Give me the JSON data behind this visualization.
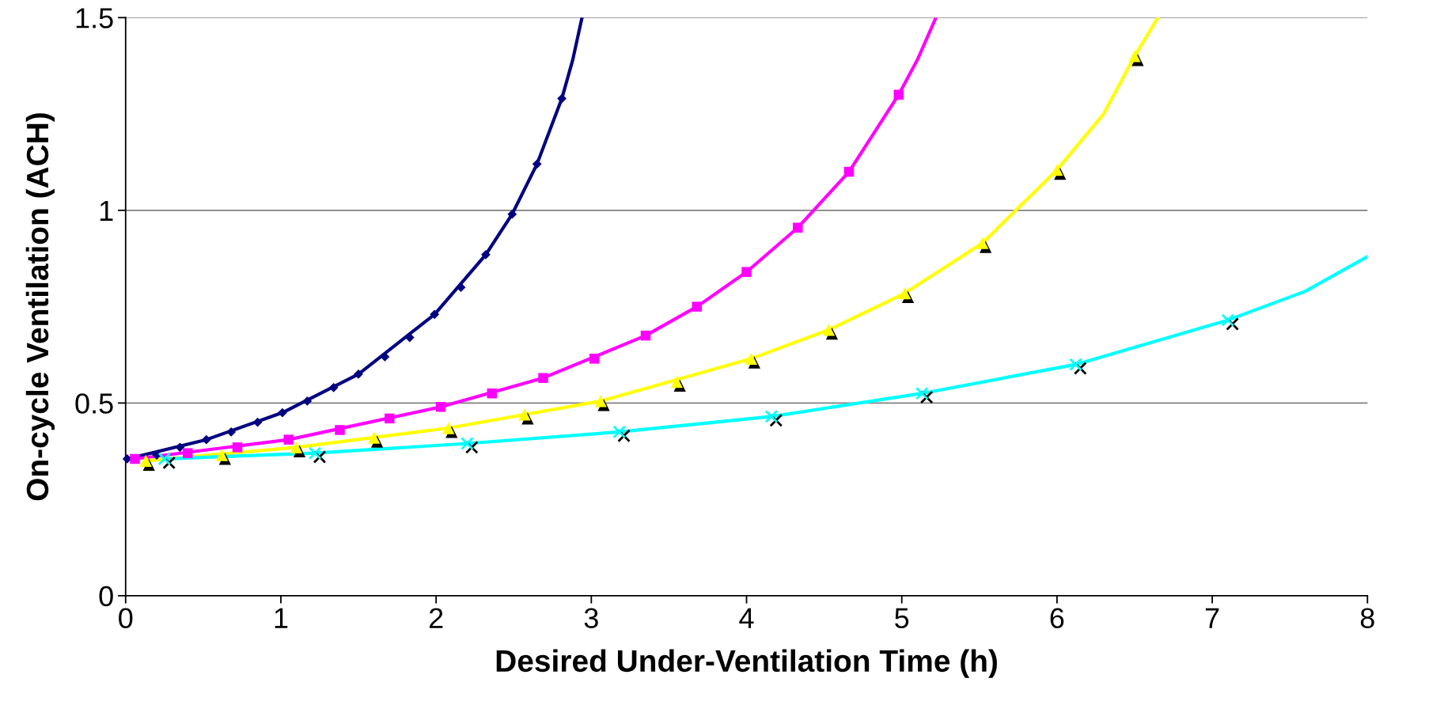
{
  "chart_data": {
    "type": "line",
    "xlabel": "Desired Under-Ventilation Time (h)",
    "ylabel": "On-cycle Ventilation (ACH)",
    "xlim": [
      0,
      8
    ],
    "ylim": [
      0,
      1.5
    ],
    "xticks": [
      0,
      1,
      2,
      3,
      4,
      5,
      6,
      7,
      8
    ],
    "yticks": [
      0,
      0.5,
      1,
      1.5
    ],
    "grid": "y",
    "legend": false,
    "series": [
      {
        "color": "#000080",
        "marker": "none",
        "x": [
          0.01,
          0.52,
          1.01,
          1.5,
          1.99,
          2.32,
          2.49,
          2.65,
          2.81,
          2.88,
          2.94
        ],
        "values": [
          0.355,
          0.405,
          0.475,
          0.575,
          0.73,
          0.885,
          0.99,
          1.12,
          1.29,
          1.39,
          1.5
        ]
      },
      {
        "type": "scatter",
        "color": "#000080",
        "marker": "diamond",
        "x": [
          0.01,
          0.2,
          0.35,
          0.52,
          0.68,
          0.85,
          1.01,
          1.17,
          1.34,
          1.5,
          1.67,
          1.83,
          1.99,
          2.16,
          2.32,
          2.49,
          2.65,
          2.81
        ],
        "values": [
          0.355,
          0.365,
          0.385,
          0.405,
          0.425,
          0.45,
          0.475,
          0.505,
          0.54,
          0.575,
          0.62,
          0.67,
          0.73,
          0.8,
          0.885,
          0.99,
          1.12,
          1.29
        ]
      },
      {
        "color": "#ff00ff",
        "marker": "none",
        "x": [
          0.06,
          1.05,
          2.03,
          2.69,
          3.35,
          3.68,
          4.0,
          4.33,
          4.66,
          4.98,
          5.1,
          5.22
        ],
        "values": [
          0.355,
          0.405,
          0.49,
          0.565,
          0.675,
          0.75,
          0.84,
          0.955,
          1.1,
          1.3,
          1.39,
          1.5
        ]
      },
      {
        "type": "scatter",
        "color": "#ff00ff",
        "marker": "square",
        "x": [
          0.06,
          0.4,
          0.72,
          1.05,
          1.38,
          1.7,
          2.03,
          2.36,
          2.69,
          3.02,
          3.35,
          3.68,
          4.0,
          4.33,
          4.66,
          4.98
        ],
        "values": [
          0.355,
          0.37,
          0.385,
          0.405,
          0.43,
          0.46,
          0.49,
          0.525,
          0.565,
          0.615,
          0.675,
          0.75,
          0.84,
          0.955,
          1.1,
          1.3
        ]
      },
      {
        "type": "scatter",
        "color": "#000000",
        "marker": "triangle",
        "x": [
          0.15,
          0.64,
          1.12,
          1.62,
          2.1,
          2.59,
          3.08,
          3.57,
          4.05,
          4.55,
          5.04,
          5.54,
          6.02,
          6.52
        ],
        "values": [
          0.34,
          0.355,
          0.375,
          0.4,
          0.425,
          0.46,
          0.495,
          0.545,
          0.605,
          0.68,
          0.775,
          0.905,
          1.095,
          1.39
        ]
      },
      {
        "color": "#ffff00",
        "marker": "none",
        "x": [
          0.13,
          1.1,
          2.08,
          3.06,
          4.03,
          4.53,
          5.02,
          5.52,
          6.0,
          6.3,
          6.5,
          6.65
        ],
        "values": [
          0.35,
          0.385,
          0.435,
          0.505,
          0.615,
          0.69,
          0.785,
          0.915,
          1.105,
          1.25,
          1.4,
          1.5
        ]
      },
      {
        "type": "scatter",
        "color": "#ffff00",
        "marker": "triangle",
        "x": [
          0.13,
          0.62,
          1.1,
          1.6,
          2.08,
          2.57,
          3.06,
          3.55,
          4.03,
          4.53,
          5.02,
          5.52,
          6.0,
          6.5
        ],
        "values": [
          0.35,
          0.365,
          0.385,
          0.41,
          0.435,
          0.47,
          0.505,
          0.555,
          0.615,
          0.69,
          0.785,
          0.915,
          1.105,
          1.4
        ]
      },
      {
        "type": "scatter",
        "color": "#000000",
        "marker": "cross",
        "x": [
          0.28,
          1.25,
          2.23,
          3.21,
          4.19,
          5.16,
          6.15,
          7.13
        ],
        "values": [
          0.345,
          0.36,
          0.385,
          0.415,
          0.455,
          0.515,
          0.59,
          0.705
        ]
      },
      {
        "color": "#00ffff",
        "marker": "none",
        "x": [
          0.25,
          1.22,
          2.2,
          3.18,
          4.16,
          5.13,
          6.12,
          7.1,
          7.6,
          8.0
        ],
        "values": [
          0.355,
          0.37,
          0.395,
          0.425,
          0.465,
          0.525,
          0.6,
          0.715,
          0.79,
          0.88
        ]
      },
      {
        "type": "scatter",
        "color": "#00ffff",
        "marker": "cross",
        "x": [
          0.25,
          1.22,
          2.2,
          3.18,
          4.16,
          5.13,
          6.12,
          7.1
        ],
        "values": [
          0.355,
          0.37,
          0.395,
          0.425,
          0.465,
          0.525,
          0.6,
          0.715
        ]
      }
    ]
  }
}
